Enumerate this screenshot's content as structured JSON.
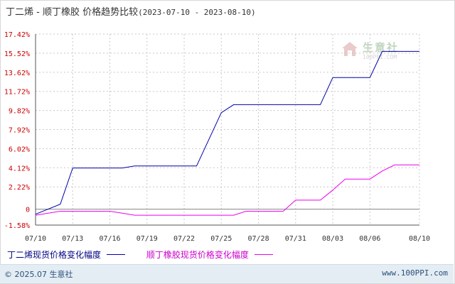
{
  "title": {
    "main": "丁二烯 - 顺丁橡胶 价格趋势比较",
    "range": "(2023-07-10 - 2023-08-10)"
  },
  "watermark": {
    "cn": "生意社",
    "en": "100PPI.COM"
  },
  "footer": {
    "copyright": "© 2025.07 生意社",
    "site": "www.100PPI.com"
  },
  "colors": {
    "series1": "#0000aa",
    "series2": "#ee00ee",
    "grid": "#c8c8c8",
    "ytick_label": "#cc0000",
    "xtick_label": "#333333"
  },
  "chart_data": {
    "type": "line",
    "y_ticks": [
      {
        "value": 17.42,
        "label": "17.42%"
      },
      {
        "value": 15.52,
        "label": "15.52%"
      },
      {
        "value": 13.62,
        "label": "13.62%"
      },
      {
        "value": 11.72,
        "label": "11.72%"
      },
      {
        "value": 9.82,
        "label": "9.82%"
      },
      {
        "value": 7.92,
        "label": "7.92%"
      },
      {
        "value": 6.02,
        "label": "6.02%"
      },
      {
        "value": 4.12,
        "label": "4.12%"
      },
      {
        "value": 2.22,
        "label": "2.22%"
      },
      {
        "value": 0,
        "label": "0"
      },
      {
        "value": -1.58,
        "label": "-1.58%"
      }
    ],
    "ylim": [
      -1.58,
      17.42
    ],
    "xlim": [
      "2023-07-10",
      "2023-08-10"
    ],
    "x_ticks": [
      {
        "date": "2023-07-10",
        "label": "07/10"
      },
      {
        "date": "2023-07-13",
        "label": "07/13"
      },
      {
        "date": "2023-07-16",
        "label": "07/16"
      },
      {
        "date": "2023-07-19",
        "label": "07/19"
      },
      {
        "date": "2023-07-22",
        "label": "07/22"
      },
      {
        "date": "2023-07-25",
        "label": "07/25"
      },
      {
        "date": "2023-07-28",
        "label": "07/28"
      },
      {
        "date": "2023-07-31",
        "label": "07/31"
      },
      {
        "date": "2023-08-03",
        "label": "08/03"
      },
      {
        "date": "2023-08-06",
        "label": "08/06"
      },
      {
        "date": "2023-08-10",
        "label": "08/10"
      }
    ],
    "grid": true,
    "legend_position": "bottom",
    "series": [
      {
        "name": "丁二烯现货价格变化幅度",
        "points": [
          [
            "2023-07-10",
            -0.5
          ],
          [
            "2023-07-12",
            0.5
          ],
          [
            "2023-07-13",
            4.1
          ],
          [
            "2023-07-17",
            4.1
          ],
          [
            "2023-07-18",
            4.3
          ],
          [
            "2023-07-22",
            4.3
          ],
          [
            "2023-07-23",
            4.3
          ],
          [
            "2023-07-25",
            9.6
          ],
          [
            "2023-07-26",
            10.4
          ],
          [
            "2023-07-29",
            10.4
          ],
          [
            "2023-08-02",
            10.4
          ],
          [
            "2023-08-03",
            13.1
          ],
          [
            "2023-08-05",
            13.1
          ],
          [
            "2023-08-06",
            13.1
          ],
          [
            "2023-08-07",
            15.7
          ],
          [
            "2023-08-10",
            15.7
          ]
        ]
      },
      {
        "name": "顺丁橡胶现货价格变化幅度",
        "points": [
          [
            "2023-07-10",
            -0.6
          ],
          [
            "2023-07-12",
            -0.2
          ],
          [
            "2023-07-16",
            -0.2
          ],
          [
            "2023-07-17",
            -0.4
          ],
          [
            "2023-07-18",
            -0.6
          ],
          [
            "2023-07-20",
            -0.6
          ],
          [
            "2023-07-25",
            -0.6
          ],
          [
            "2023-07-26",
            -0.6
          ],
          [
            "2023-07-27",
            -0.2
          ],
          [
            "2023-07-30",
            -0.2
          ],
          [
            "2023-07-31",
            0.9
          ],
          [
            "2023-08-01",
            0.9
          ],
          [
            "2023-08-02",
            0.9
          ],
          [
            "2023-08-03",
            1.9
          ],
          [
            "2023-08-04",
            3.0
          ],
          [
            "2023-08-06",
            3.0
          ],
          [
            "2023-08-07",
            3.8
          ],
          [
            "2023-08-08",
            4.4
          ],
          [
            "2023-08-10",
            4.4
          ]
        ]
      }
    ]
  }
}
